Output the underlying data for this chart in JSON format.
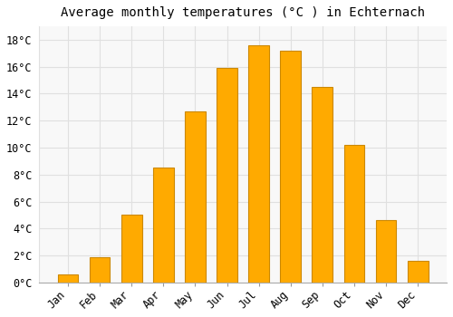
{
  "title": "Average monthly temperatures (°C ) in Echternach",
  "months": [
    "Jan",
    "Feb",
    "Mar",
    "Apr",
    "May",
    "Jun",
    "Jul",
    "Aug",
    "Sep",
    "Oct",
    "Nov",
    "Dec"
  ],
  "values": [
    0.6,
    1.9,
    5.0,
    8.5,
    12.7,
    15.9,
    17.6,
    17.2,
    14.5,
    10.2,
    4.6,
    1.6
  ],
  "bar_color": "#FFAA00",
  "bar_edge_color": "#CC8800",
  "background_color": "#FFFFFF",
  "plot_bg_color": "#F8F8F8",
  "grid_color": "#E0E0E0",
  "ylim": [
    0,
    19
  ],
  "yticks": [
    0,
    2,
    4,
    6,
    8,
    10,
    12,
    14,
    16,
    18
  ],
  "title_fontsize": 10,
  "tick_fontsize": 8.5,
  "bar_width": 0.65
}
